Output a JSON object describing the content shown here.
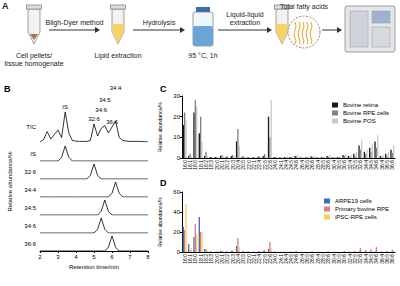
{
  "figure": {
    "panel_labels": [
      "A",
      "B",
      "C",
      "D"
    ],
    "workflow": {
      "steps": [
        {
          "kind": "tube",
          "label": [
            "Cell pellets/",
            "tissue homogenate"
          ]
        },
        {
          "kind": "extract",
          "label": [
            "Lipid extraction"
          ]
        },
        {
          "kind": "vial",
          "label": [
            "95 °C, 1h"
          ]
        },
        {
          "kind": "zoom",
          "label": [
            "Total fatty acids"
          ]
        },
        {
          "kind": "instrument",
          "label": []
        }
      ],
      "arrow_labels": [
        [
          "Bligh-Dyer method"
        ],
        [
          "Hydrolysis"
        ],
        [
          "Liquid-liquid",
          "extraction"
        ],
        []
      ]
    }
  },
  "chart_data": [
    {
      "type": "line",
      "x_label": "Retention time/min",
      "y_label": "Relative abundance/%",
      "color": "#000000",
      "grid": false,
      "tick_labels": "x",
      "x": [
        2,
        2.2,
        2.4,
        2.6,
        2.8,
        3,
        3.2,
        3.4,
        3.6,
        3.8,
        4,
        4.2,
        4.4,
        4.6,
        4.8,
        5,
        5.2,
        5.4,
        5.6,
        5.8,
        6,
        6.2,
        6.4,
        6.6,
        6.8,
        7,
        7.2,
        7.4,
        7.6,
        7.8,
        8
      ],
      "xlim": [
        2,
        8
      ],
      "xticks": [
        2,
        3,
        4,
        5,
        6,
        7,
        8
      ],
      "ylim": [
        0,
        100
      ],
      "series": [
        {
          "name": "TIC",
          "values": [
            0,
            8,
            35,
            10,
            25,
            40,
            15,
            100,
            30,
            5,
            3,
            2,
            2,
            2,
            5,
            60,
            20,
            45,
            55,
            30,
            50,
            70,
            15,
            5,
            3,
            2,
            2,
            2,
            2,
            1,
            0
          ]
        },
        {
          "name": "IS",
          "values": [
            0,
            0,
            0,
            0,
            0,
            0,
            25,
            100,
            25,
            0,
            0,
            0,
            0,
            0,
            0,
            0,
            0,
            0,
            0,
            0,
            0,
            0,
            0,
            0,
            0,
            0,
            0,
            0,
            0,
            0,
            0
          ]
        },
        {
          "name": "32:6",
          "values": [
            0,
            0,
            0,
            0,
            0,
            0,
            0,
            0,
            0,
            0,
            0,
            0,
            0,
            0,
            25,
            100,
            25,
            0,
            0,
            0,
            0,
            0,
            0,
            0,
            0,
            0,
            0,
            0,
            0,
            0,
            0
          ]
        },
        {
          "name": "34:4",
          "values": [
            0,
            0,
            0,
            0,
            0,
            0,
            0,
            0,
            0,
            0,
            0,
            0,
            0,
            0,
            0,
            0,
            0,
            0,
            0,
            0,
            25,
            100,
            25,
            0,
            0,
            0,
            0,
            0,
            0,
            0,
            0
          ]
        },
        {
          "name": "34:5",
          "values": [
            0,
            0,
            0,
            0,
            0,
            0,
            0,
            0,
            0,
            0,
            0,
            0,
            0,
            0,
            0,
            0,
            0,
            25,
            100,
            25,
            0,
            0,
            0,
            0,
            0,
            0,
            0,
            0,
            0,
            0,
            0
          ]
        },
        {
          "name": "34:6",
          "values": [
            0,
            0,
            0,
            0,
            0,
            0,
            0,
            0,
            0,
            0,
            0,
            0,
            0,
            0,
            0,
            0,
            25,
            100,
            25,
            0,
            0,
            0,
            0,
            0,
            0,
            0,
            0,
            0,
            0,
            0,
            0
          ]
        },
        {
          "name": "36:6",
          "values": [
            0,
            0,
            0,
            0,
            0,
            0,
            0,
            0,
            0,
            0,
            0,
            0,
            0,
            0,
            0,
            0,
            0,
            0,
            0,
            25,
            100,
            25,
            0,
            0,
            0,
            0,
            0,
            0,
            0,
            0,
            0
          ]
        }
      ],
      "annotations": [
        {
          "text": "IS",
          "x": 3.4,
          "y": 100
        },
        {
          "text": "32:6",
          "x": 5,
          "y": 60
        },
        {
          "text": "34:6",
          "x": 5.4,
          "y": 45
        },
        {
          "text": "34:5",
          "x": 5.6,
          "y": 55
        },
        {
          "text": "36:6",
          "x": 6,
          "y": 50
        },
        {
          "text": "34:4",
          "x": 6.2,
          "y": 70
        }
      ]
    },
    {
      "type": "bar",
      "y_label": "Relative abundance/%",
      "grid": false,
      "legend": "top-right",
      "categories": [
        "16:0",
        "16:1",
        "18:0",
        "18:1",
        "18:2",
        "18:3",
        "20:0",
        "20:1",
        "20:2",
        "20:3",
        "20:4",
        "20:5",
        "22:0",
        "22:1",
        "22:4",
        "22:5",
        "22:6",
        "24:0",
        "24:1",
        "24:4",
        "24:5",
        "24:6",
        "26:4",
        "26:5",
        "26:6",
        "28:4",
        "28:5",
        "28:6",
        "30:4",
        "30:5",
        "30:6",
        "32:4",
        "32:5",
        "32:6",
        "34:4",
        "34:5",
        "34:6",
        "36:4",
        "36:5",
        "36:6"
      ],
      "ylim": [
        0,
        30
      ],
      "yticks": [
        0,
        10,
        20,
        30
      ],
      "series": [
        {
          "name": "Bovine retina",
          "color": "#1a1a1a",
          "values": [
            16,
            1,
            22,
            12,
            1,
            0.5,
            0.5,
            1,
            0.5,
            1,
            8,
            0.5,
            0.3,
            0.3,
            0.5,
            1,
            20,
            0.5,
            0.3,
            0.5,
            0.5,
            1,
            0.3,
            0.5,
            0.8,
            0.3,
            0.5,
            1,
            0.3,
            0.5,
            1.5,
            1,
            2,
            6,
            3,
            5,
            8,
            1,
            2,
            4
          ]
        },
        {
          "name": "Bovine RPE cells",
          "color": "#7f7f7f",
          "values": [
            22,
            2,
            28,
            20,
            3,
            0.5,
            0.5,
            1.5,
            0.8,
            1.5,
            14,
            1,
            0.5,
            0.5,
            1,
            2,
            10,
            0.5,
            0.3,
            0.3,
            0.5,
            0.8,
            0.2,
            0.3,
            0.5,
            0.2,
            0.3,
            0.6,
            0.2,
            0.3,
            1,
            0.5,
            1,
            4,
            2,
            3,
            5,
            0.5,
            1,
            2.5
          ]
        },
        {
          "name": "Bovine POS",
          "color": "#c8c8c8",
          "values": [
            18,
            1,
            25,
            8,
            1,
            0.3,
            0.3,
            0.8,
            0.3,
            0.8,
            6,
            0.5,
            0.2,
            0.2,
            0.5,
            1.5,
            28,
            0.8,
            0.5,
            0.8,
            1,
            1.5,
            0.5,
            0.8,
            1.2,
            0.5,
            0.8,
            1.5,
            0.5,
            0.8,
            2,
            1.5,
            3,
            9,
            4,
            7,
            11,
            1.5,
            3,
            6
          ]
        }
      ]
    },
    {
      "type": "bar",
      "y_label": "Relative abundance/%",
      "grid": false,
      "legend": "top-right",
      "categories": [
        "16:0",
        "16:1",
        "18:0",
        "18:1",
        "18:2",
        "18:3",
        "20:0",
        "20:1",
        "20:2",
        "20:3",
        "20:4",
        "20:5",
        "22:0",
        "22:1",
        "22:4",
        "22:5",
        "22:6",
        "24:0",
        "24:1",
        "24:4",
        "24:5",
        "24:6",
        "26:4",
        "26:5",
        "26:6",
        "28:4",
        "28:5",
        "28:6",
        "30:4",
        "30:5",
        "30:6",
        "32:4",
        "32:5",
        "32:6",
        "34:4",
        "34:5",
        "34:6",
        "36:4",
        "36:5",
        "36:6"
      ],
      "ylim": [
        0,
        60
      ],
      "yticks": [
        0,
        20,
        40,
        60
      ],
      "series": [
        {
          "name": "ARPE19 cells",
          "color": "#3b6fb6",
          "values": [
            25,
            8,
            15,
            35,
            3,
            0.5,
            0.3,
            1,
            0.5,
            1,
            6,
            0.5,
            0.2,
            0.2,
            0.5,
            1,
            3,
            0.2,
            0.1,
            0.2,
            0.2,
            0.3,
            0.1,
            0.1,
            0.2,
            0.1,
            0.1,
            0.2,
            0.1,
            0.1,
            0.3,
            0.1,
            0.2,
            0.5,
            0.2,
            0.3,
            0.5,
            0.1,
            0.2,
            0.3
          ]
        },
        {
          "name": "Primary bovine RPE",
          "color": "#e07a8f",
          "values": [
            22,
            2,
            28,
            20,
            3,
            0.5,
            0.5,
            1.5,
            0.8,
            1.5,
            14,
            1,
            0.5,
            0.5,
            1,
            2,
            10,
            0.5,
            0.3,
            0.3,
            0.5,
            0.8,
            0.2,
            0.3,
            0.5,
            0.2,
            0.3,
            0.6,
            0.2,
            0.3,
            1,
            0.5,
            1,
            4,
            2,
            3,
            5,
            0.5,
            1,
            2.5
          ]
        },
        {
          "name": "iPSC-RPE cells",
          "color": "#f2d15a",
          "values": [
            48,
            4,
            18,
            20,
            2,
            0.3,
            0.2,
            0.8,
            0.3,
            0.8,
            5,
            0.3,
            0.1,
            0.1,
            0.3,
            0.8,
            4,
            0.2,
            0.1,
            0.1,
            0.2,
            0.3,
            0.1,
            0.1,
            0.2,
            0.1,
            0.1,
            0.2,
            0.1,
            0.1,
            0.3,
            0.1,
            0.2,
            0.6,
            0.2,
            0.3,
            0.7,
            0.1,
            0.2,
            0.4
          ]
        }
      ]
    }
  ]
}
